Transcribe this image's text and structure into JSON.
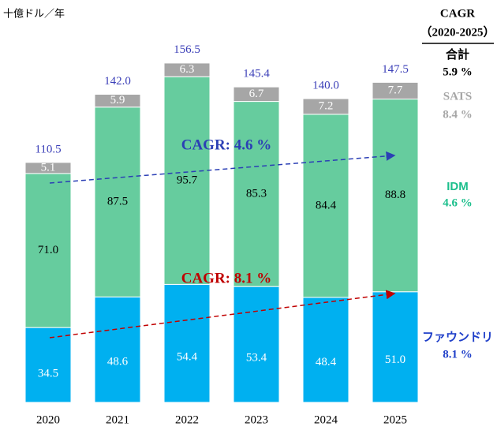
{
  "chart_data": {
    "type": "stacked_bar",
    "unit_label": "十億ドル／年",
    "categories": [
      "2020",
      "2021",
      "2022",
      "2023",
      "2024",
      "2025"
    ],
    "series": [
      {
        "name": "ファウンドリ",
        "color": "#00b0f0",
        "legend_color": "#1f3fc9",
        "cagr": "8.1 %",
        "values": [
          34.5,
          48.6,
          54.4,
          53.4,
          48.4,
          51.0
        ],
        "value_labels": [
          "34.5",
          "48.6",
          "54.4",
          "53.4",
          "48.4",
          "51.0"
        ]
      },
      {
        "name": "IDM",
        "color": "#66cc9e",
        "legend_color": "#1cbf8c",
        "cagr": "4.6 %",
        "values": [
          71.0,
          87.5,
          95.7,
          85.3,
          84.4,
          88.8
        ],
        "value_labels": [
          "71.0",
          "87.5",
          "95.7",
          "85.3",
          "84.4",
          "88.8"
        ]
      },
      {
        "name": "SATS",
        "color": "#a6a6a6",
        "legend_color": "#a6a6a6",
        "cagr": "8.4 %",
        "values": [
          5.1,
          5.9,
          6.3,
          6.7,
          7.2,
          7.7
        ],
        "value_labels": [
          "5.1",
          "5.9",
          "6.3",
          "6.7",
          "7.2",
          "7.7"
        ]
      }
    ],
    "totals": [
      110.5,
      142.0,
      156.5,
      145.4,
      140.0,
      147.5
    ],
    "total_labels": [
      "110.5",
      "142.0",
      "156.5",
      "145.4",
      "140.0",
      "147.5"
    ],
    "total_name": "合計",
    "total_cagr": "5.9 %",
    "legend_title": "CAGR",
    "legend_subtitle": "（2020-2025）",
    "annotations": [
      {
        "text": "CAGR: 4.6 %",
        "color": "#2b3fb5"
      },
      {
        "text": "CAGR: 8.1 %",
        "color": "#c00000"
      }
    ]
  }
}
